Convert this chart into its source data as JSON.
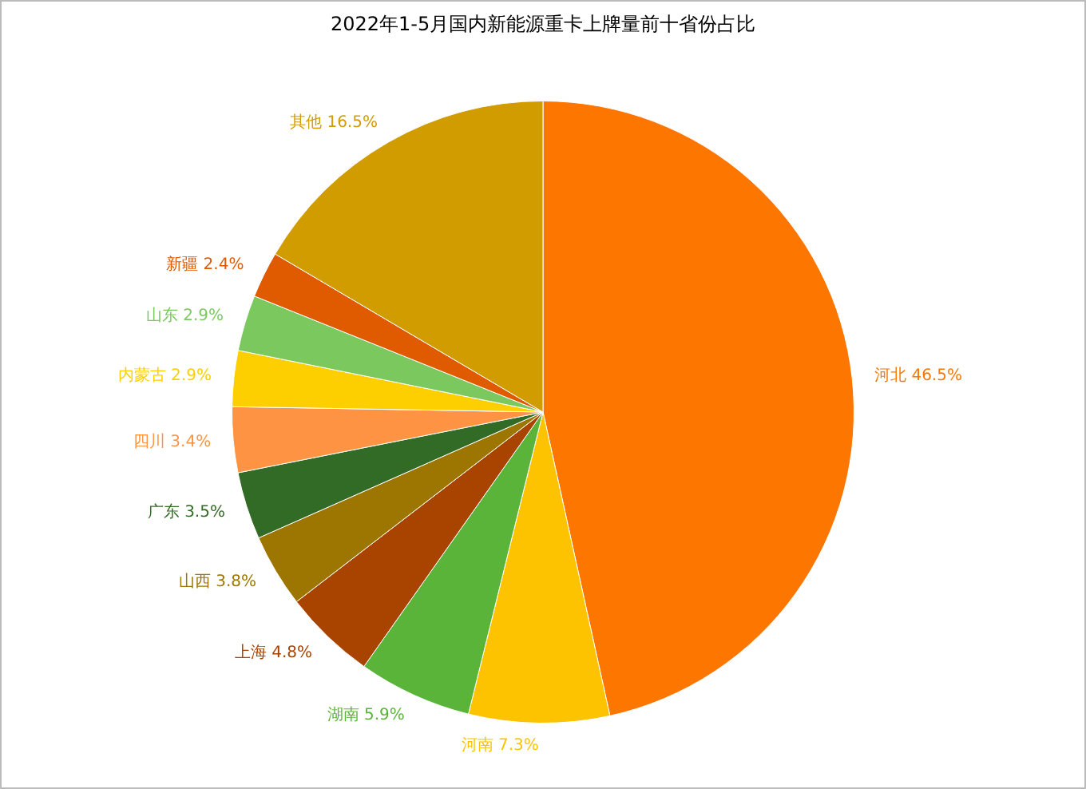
{
  "chart_data": {
    "type": "pie",
    "title": "2022年1-5月国内新能源重卡上牌量前十省份占比",
    "categories": [
      "河北",
      "河南",
      "湖南",
      "上海",
      "山西",
      "广东",
      "四川",
      "内蒙古",
      "山东",
      "新疆",
      "其他"
    ],
    "values": [
      46.5,
      7.3,
      5.9,
      4.8,
      3.8,
      3.5,
      3.4,
      2.9,
      2.9,
      2.4,
      16.5
    ],
    "value_labels": [
      "46.5%",
      "7.3%",
      "5.9%",
      "4.8%",
      "3.8%",
      "3.5%",
      "3.4%",
      "2.9%",
      "2.9%",
      "2.4%",
      "16.5%"
    ],
    "colors": [
      "#fd7700",
      "#fdc300",
      "#5bb43a",
      "#a94300",
      "#9c7600",
      "#326b25",
      "#fd9343",
      "#fdcf00",
      "#7bc95e",
      "#e05a00",
      "#d09c00"
    ],
    "legend": false
  }
}
